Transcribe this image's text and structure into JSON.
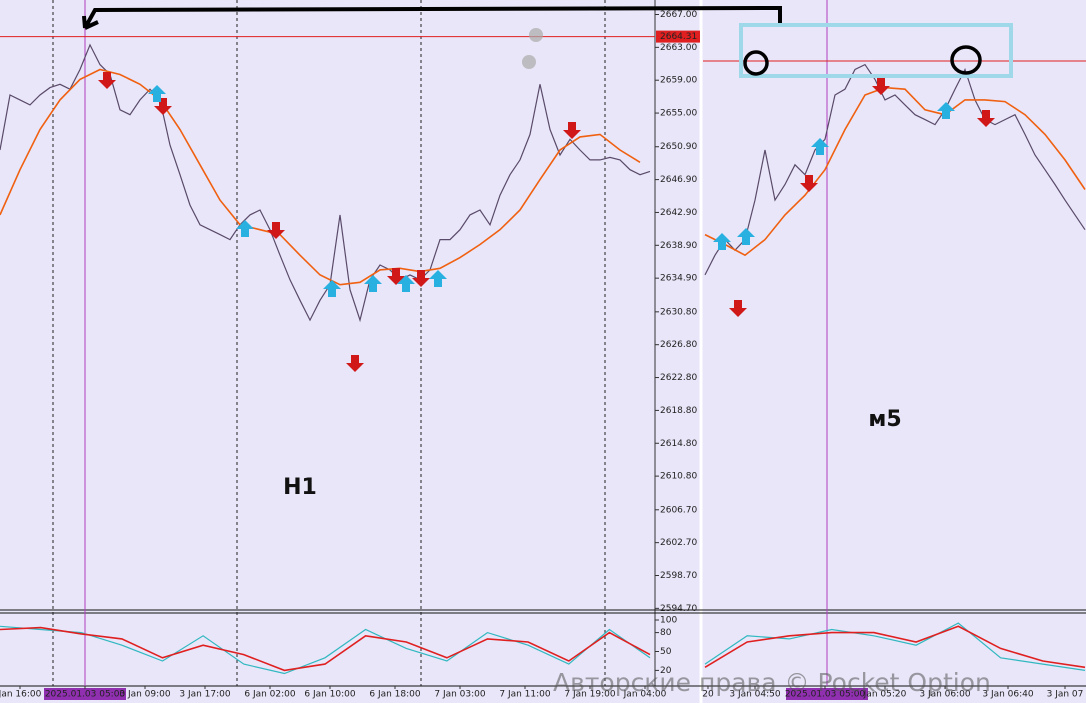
{
  "chart_data": [
    {
      "type": "line",
      "annotation": "H1",
      "ylim": [
        2594.5,
        2668.4
      ],
      "yticks": [
        {
          "value": 2667,
          "label": "2667.00"
        },
        {
          "value": 2663,
          "label": "2663.00"
        },
        {
          "value": 2659,
          "label": "2659.00"
        },
        {
          "value": 2655,
          "label": "2655.00"
        },
        {
          "value": 2650.9,
          "label": "2650.90"
        },
        {
          "value": 2646.9,
          "label": "2646.90"
        },
        {
          "value": 2642.9,
          "label": "2642.90"
        },
        {
          "value": 2638.9,
          "label": "2638.90"
        },
        {
          "value": 2634.9,
          "label": "2634.90"
        },
        {
          "value": 2630.8,
          "label": "2630.80"
        },
        {
          "value": 2626.8,
          "label": "2626.80"
        },
        {
          "value": 2622.8,
          "label": "2622.80"
        },
        {
          "value": 2618.8,
          "label": "2618.80"
        },
        {
          "value": 2614.8,
          "label": "2614.80"
        },
        {
          "value": 2610.8,
          "label": "2610.80"
        },
        {
          "value": 2606.7,
          "label": "2606.70"
        },
        {
          "value": 2602.7,
          "label": "2602.70"
        },
        {
          "value": 2598.7,
          "label": "2598.70"
        },
        {
          "value": 2594.7,
          "label": "2594.70"
        }
      ],
      "xlim": [
        0,
        65
      ],
      "xticks": [
        {
          "value": 2,
          "label": "Jan 16:00"
        },
        {
          "value": 8.5,
          "label": "2025.01.03 05:00"
        },
        {
          "value": 14.5,
          "label": "3 Jan 09:00"
        },
        {
          "value": 20.5,
          "label": "3 Jan 17:00"
        },
        {
          "value": 27,
          "label": "6 Jan 02:00"
        },
        {
          "value": 33,
          "label": "6 Jan 10:00"
        },
        {
          "value": 39.5,
          "label": "6 Jan 18:00"
        },
        {
          "value": 46,
          "label": "7 Jan 03:00"
        },
        {
          "value": 52.5,
          "label": "7 Jan 11:00"
        },
        {
          "value": 59,
          "label": "7 Jan 19:00"
        },
        {
          "value": 64.5,
          "label": "Jan 04:00"
        }
      ],
      "price_line": 2664.31,
      "series": [
        {
          "color": "#5a4a6a",
          "values": [
            2650.5,
            2657.2,
            2656.6,
            2656.0,
            2657.2,
            2658.1,
            2658.5,
            2657.9,
            2660.3,
            2663.3,
            2660.9,
            2659.7,
            2655.4,
            2654.8,
            2656.6,
            2657.9,
            2656.6,
            2651.1,
            2647.5,
            2643.8,
            2641.4,
            2640.8,
            2640.2,
            2639.6,
            2641.4,
            2642.6,
            2643.2,
            2640.8,
            2637.7,
            2634.7,
            2632.2,
            2629.8,
            2632.2,
            2634.1,
            2642.6,
            2633.5,
            2629.8,
            2634.7,
            2636.5,
            2635.9,
            2634.7,
            2635.3,
            2634.7,
            2635.9,
            2639.6,
            2639.6,
            2640.8,
            2642.6,
            2643.2,
            2641.4,
            2645.0,
            2647.5,
            2649.3,
            2652.4,
            2658.5,
            2653.0,
            2649.9,
            2651.8,
            2650.5,
            2649.3,
            2649.3,
            2649.6,
            2649.3,
            2648.1,
            2647.5,
            2647.9
          ]
        },
        {
          "color": "#f06010",
          "x": [
            0,
            2,
            4,
            6,
            8,
            10,
            12,
            14,
            16,
            18,
            20,
            22,
            24,
            26,
            28,
            30,
            32,
            34,
            36,
            38,
            40,
            42,
            44,
            46,
            48,
            50,
            52,
            54,
            56,
            58,
            60,
            62,
            64
          ],
          "values": [
            2642.6,
            2648.1,
            2653.0,
            2656.6,
            2659.1,
            2660.3,
            2659.7,
            2658.5,
            2656.6,
            2653.0,
            2648.7,
            2644.4,
            2641.4,
            2640.8,
            2640.2,
            2637.7,
            2635.3,
            2634.1,
            2634.4,
            2635.9,
            2636.1,
            2635.7,
            2636.1,
            2637.4,
            2639.0,
            2640.8,
            2643.2,
            2646.9,
            2650.5,
            2652.1,
            2652.4,
            2650.5,
            2649.0
          ]
        }
      ]
    },
    {
      "type": "line",
      "annotation": "м5",
      "ylim": [
        2594.5,
        2668.4
      ],
      "xlim": [
        0,
        38
      ],
      "xticks": [
        {
          "value": 0.3,
          "label": "20"
        },
        {
          "value": 5,
          "label": "3 Jan 04:50"
        },
        {
          "value": 12,
          "label": "2025.01.03 05:00"
        },
        {
          "value": 18,
          "label": "Jan 05:20"
        },
        {
          "value": 24,
          "label": "3 Jan 06:00"
        },
        {
          "value": 30.3,
          "label": "3 Jan 06:40"
        },
        {
          "value": 36,
          "label": "3 Jan 07"
        }
      ],
      "series": [
        {
          "color": "#5a4a6a",
          "values": [
            2635.3,
            2637.7,
            2639.6,
            2638.3,
            2639.6,
            2644.4,
            2650.5,
            2644.4,
            2646.3,
            2648.7,
            2647.5,
            2650.5,
            2651.8,
            2657.2,
            2657.9,
            2660.3,
            2660.9,
            2659.1,
            2656.6,
            2657.2,
            2656.0,
            2654.8,
            2654.2,
            2653.6,
            2655.4,
            2657.9,
            2660.3,
            2656.6,
            2654.2,
            2653.6,
            2654.2,
            2654.8,
            2652.4,
            2649.9,
            2648.1,
            2646.3,
            2644.4,
            2642.6,
            2640.8
          ]
        },
        {
          "color": "#f06010",
          "x": [
            0,
            2,
            4,
            6,
            8,
            10,
            12,
            14,
            16,
            18,
            20,
            22,
            24,
            26,
            28,
            30,
            32,
            34,
            36,
            38
          ],
          "values": [
            2640.2,
            2639.0,
            2637.7,
            2639.6,
            2642.6,
            2645.0,
            2648.1,
            2653.0,
            2657.2,
            2658.1,
            2657.9,
            2655.4,
            2654.8,
            2656.6,
            2656.6,
            2656.4,
            2654.8,
            2652.4,
            2649.3,
            2645.7
          ]
        }
      ]
    },
    {
      "type": "line",
      "ylim": [
        0,
        100
      ],
      "yticks": [
        20,
        50,
        80,
        100
      ],
      "xlim": [
        0,
        16
      ],
      "series": [
        {
          "color": "#30b8c0",
          "values": [
            90,
            85,
            80,
            60,
            35,
            75,
            30,
            15,
            40,
            85,
            55,
            35,
            80,
            60,
            30,
            85,
            40
          ]
        },
        {
          "color": "#e02020",
          "values": [
            85,
            88,
            78,
            70,
            40,
            60,
            45,
            20,
            30,
            75,
            65,
            40,
            70,
            65,
            35,
            80,
            45
          ]
        }
      ]
    },
    {
      "type": "line",
      "ylim": [
        0,
        100
      ],
      "xlim": [
        0,
        9
      ],
      "series": [
        {
          "color": "#30b8c0",
          "values": [
            30,
            75,
            70,
            85,
            75,
            60,
            95,
            40,
            30,
            20
          ]
        },
        {
          "color": "#e02020",
          "values": [
            25,
            65,
            75,
            80,
            80,
            65,
            90,
            55,
            35,
            25
          ]
        }
      ]
    }
  ],
  "watermark": "Авторские права © Pocket Option"
}
